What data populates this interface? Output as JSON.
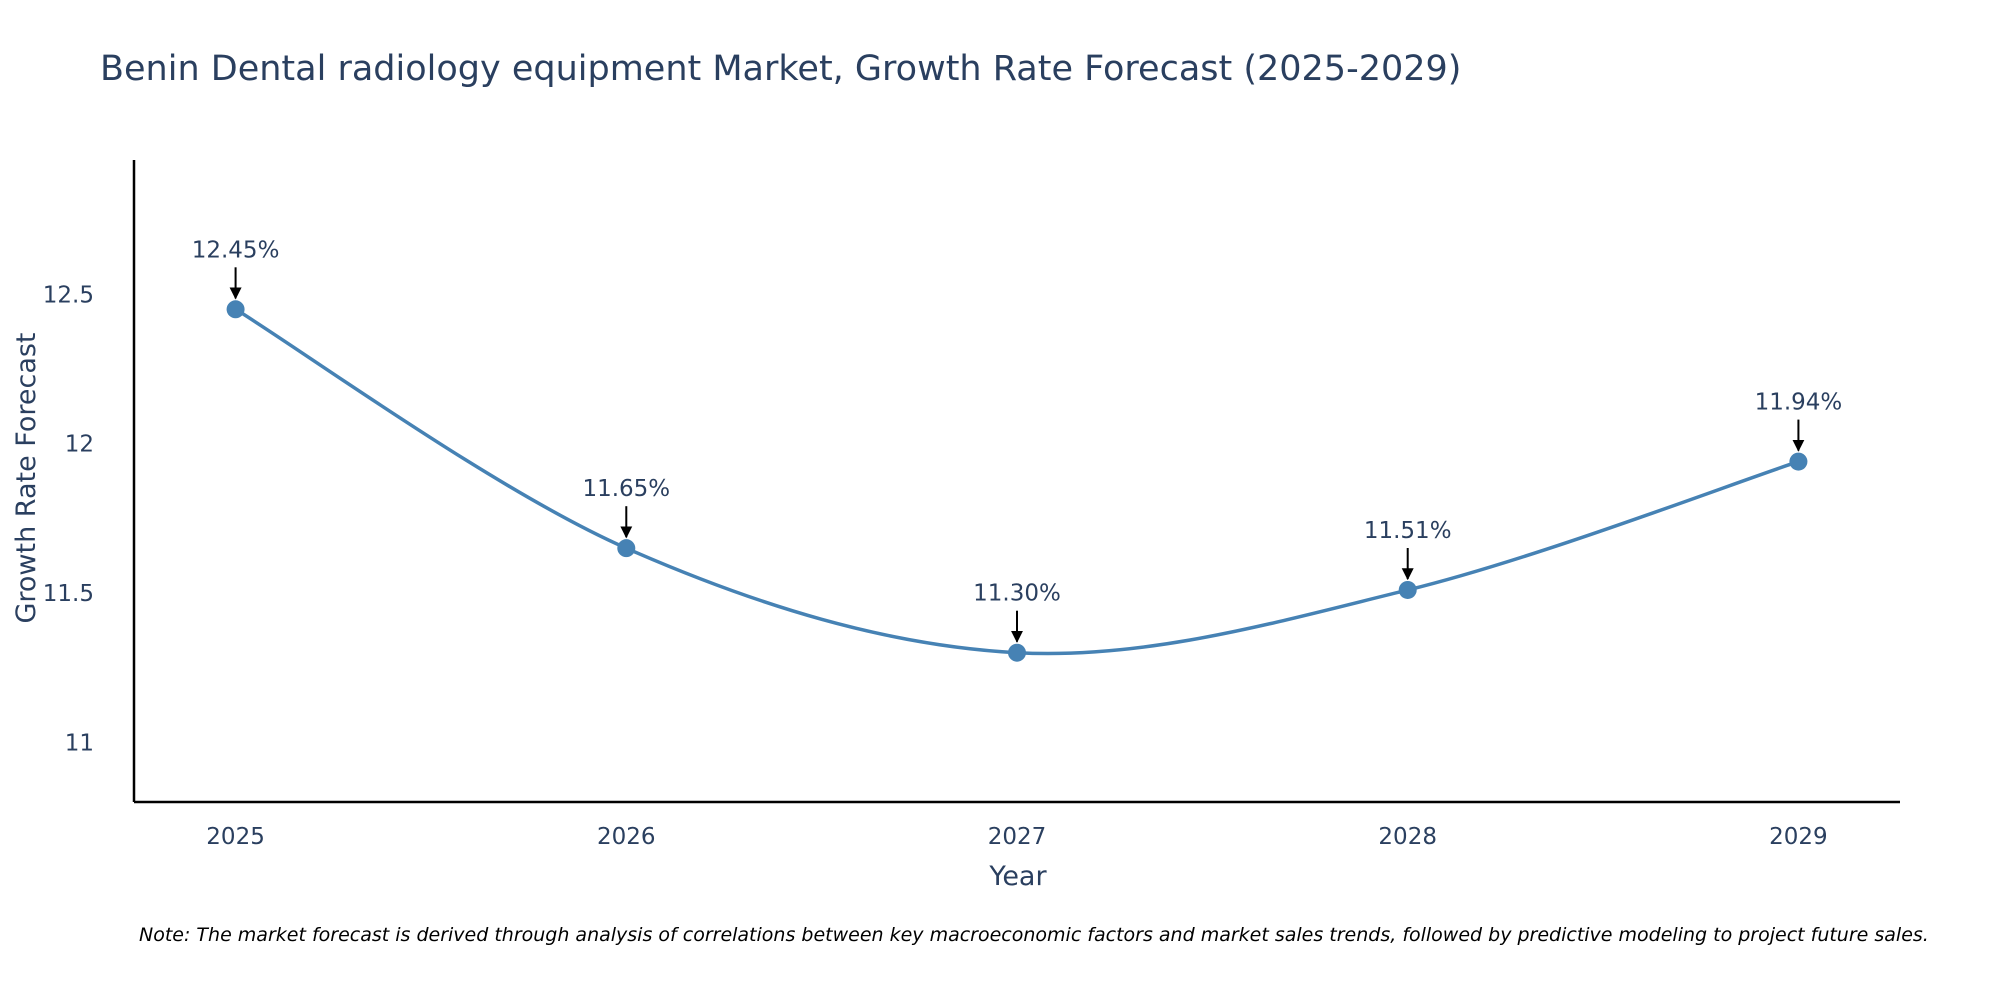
{
  "chart_data": {
    "type": "line",
    "title": "Benin Dental radiology equipment Market, Growth Rate Forecast (2025-2029)",
    "xlabel": "Year",
    "ylabel": "Growth Rate Forecast",
    "categories": [
      "2025",
      "2026",
      "2027",
      "2028",
      "2029"
    ],
    "series": [
      {
        "name": "Growth Rate Forecast",
        "values": [
          12.45,
          11.65,
          11.3,
          11.51,
          11.94
        ],
        "labels": [
          "12.45%",
          "11.65%",
          "11.30%",
          "11.51%",
          "11.94%"
        ]
      }
    ],
    "ylim": [
      10.8,
      12.95
    ],
    "yticks": [
      11,
      11.5,
      12,
      12.5
    ],
    "ytick_labels": [
      "11",
      "11.5",
      "12",
      "12.5"
    ],
    "xlim": [
      -0.26,
      4.26
    ],
    "line_shape": "spline",
    "grid": false,
    "legend": "none",
    "colors": {
      "line": "#4682b4",
      "marker": "#4682b4",
      "axis": "#000000",
      "text": "#2a3f5f",
      "arrow": "#000000"
    },
    "note": "Note: The market forecast is derived through analysis of correlations between key macroeconomic factors and market sales trends, followed by predictive modeling to project future sales."
  }
}
